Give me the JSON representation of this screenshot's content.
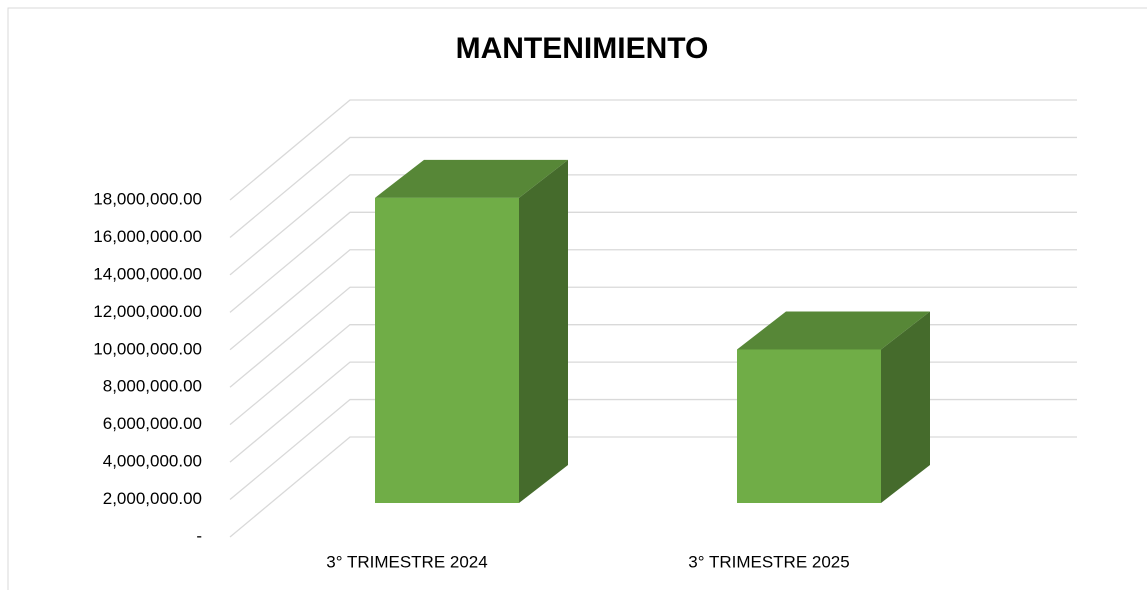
{
  "chart_data": {
    "type": "bar3d",
    "title": "MANTENIMIENTO",
    "categories": [
      "3° TRIMESTRE 2024",
      "3° TRIMESTRE 2025"
    ],
    "values": [
      16300000,
      8200000
    ],
    "color": "#70ad47",
    "ylim": [
      0,
      18000000
    ],
    "yticks": [
      {
        "value": 0,
        "label": "-"
      },
      {
        "value": 2000000,
        "label": "2,000,000.00"
      },
      {
        "value": 4000000,
        "label": "4,000,000.00"
      },
      {
        "value": 6000000,
        "label": "6,000,000.00"
      },
      {
        "value": 8000000,
        "label": "8,000,000.00"
      },
      {
        "value": 10000000,
        "label": "10,000,000.00"
      },
      {
        "value": 12000000,
        "label": "12,000,000.00"
      },
      {
        "value": 14000000,
        "label": "14,000,000.00"
      },
      {
        "value": 16000000,
        "label": "16,000,000.00"
      },
      {
        "value": 18000000,
        "label": "18,000,000.00"
      }
    ],
    "grid": true
  }
}
